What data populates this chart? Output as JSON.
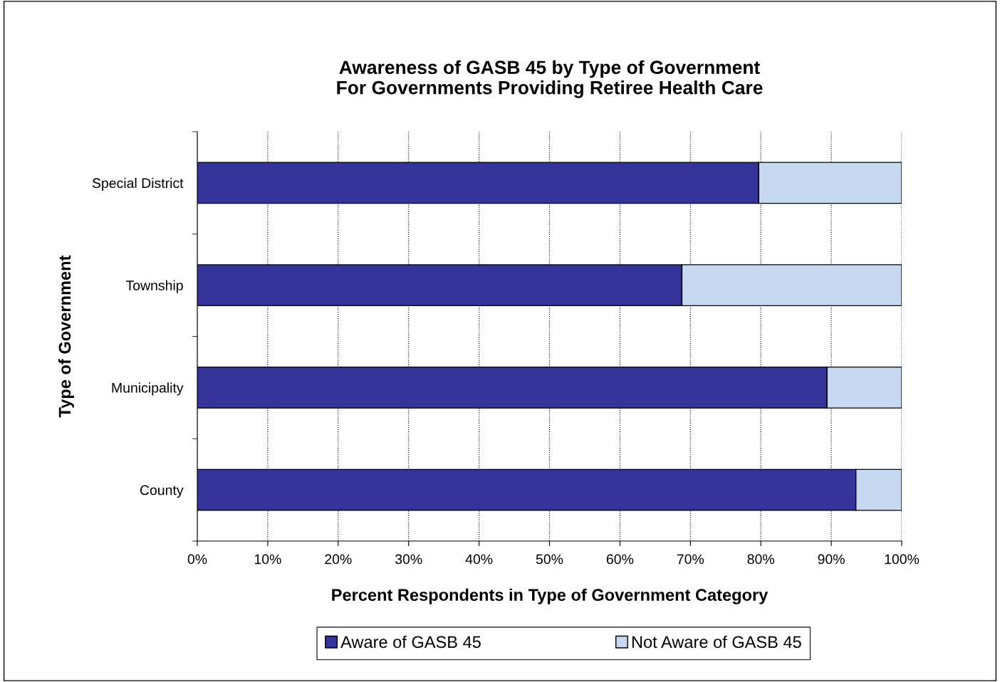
{
  "chart_data": {
    "type": "bar",
    "orientation": "horizontal",
    "stacked": true,
    "title": "Awareness of GASB 45 by Type of Government\nFor Governments Providing Retiree Health Care",
    "xlabel": "Percent Respondents in Type of Government Category",
    "ylabel": "Type of Government",
    "categories": [
      "Special District",
      "Township",
      "Municipality",
      "County"
    ],
    "series": [
      {
        "name": "Aware of GASB 45",
        "color": "#333399",
        "values": [
          79.7,
          68.8,
          89.4,
          93.5
        ]
      },
      {
        "name": "Not Aware of GASB 45",
        "color": "#c6d9f0",
        "values": [
          20.3,
          31.2,
          10.6,
          6.5
        ]
      }
    ],
    "xlim": [
      0,
      100
    ],
    "xticks": [
      {
        "value": 0,
        "label": "0%"
      },
      {
        "value": 10,
        "label": "10%"
      },
      {
        "value": 20,
        "label": "20%"
      },
      {
        "value": 30,
        "label": "30%"
      },
      {
        "value": 40,
        "label": "40%"
      },
      {
        "value": 50,
        "label": "50%"
      },
      {
        "value": 60,
        "label": "60%"
      },
      {
        "value": 70,
        "label": "70%"
      },
      {
        "value": 80,
        "label": "80%"
      },
      {
        "value": 90,
        "label": "90%"
      },
      {
        "value": 100,
        "label": "100%"
      }
    ],
    "grid": "x",
    "legend": "bottom"
  }
}
